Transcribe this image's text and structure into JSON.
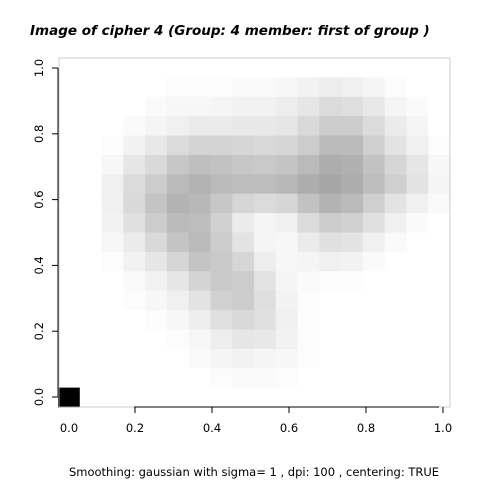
{
  "title": "Image of cipher  4 (Group:  4  member:  first of group )",
  "caption": "Smoothing:  gaussian with sigma= 1 , dpi: 100 , centering: TRUE",
  "chart_data": {
    "type": "heatmap",
    "title": "Image of cipher  4 (Group:  4  member:  first of group )",
    "xlabel": "",
    "ylabel": "",
    "xlim": [
      0,
      1
    ],
    "ylim": [
      0,
      1
    ],
    "x_ticks": [
      "0.0",
      "0.2",
      "0.4",
      "0.6",
      "0.8",
      "1.0"
    ],
    "y_ticks": [
      "0.0",
      "0.2",
      "0.4",
      "0.6",
      "0.8",
      "1.0"
    ],
    "x_tick_values": [
      0,
      0.2,
      0.4,
      0.6,
      0.8,
      1.0
    ],
    "y_tick_values": [
      0,
      0.2,
      0.4,
      0.6,
      0.8,
      1.0
    ],
    "grid": false,
    "colormap": {
      "low": "#ffffff",
      "high": "#000000"
    },
    "cell_count": 18,
    "intensity_rows_top_to_bottom": [
      [
        0,
        0,
        0,
        0,
        0,
        0,
        0,
        0,
        0,
        0,
        0,
        0,
        0,
        0,
        0,
        0,
        0,
        0
      ],
      [
        0,
        0,
        0,
        0,
        0,
        0.01,
        0.01,
        0.01,
        0.02,
        0.02,
        0.03,
        0.05,
        0.07,
        0.06,
        0.04,
        0.01,
        0,
        0
      ],
      [
        0,
        0,
        0,
        0,
        0.02,
        0.03,
        0.03,
        0.04,
        0.05,
        0.05,
        0.07,
        0.1,
        0.14,
        0.13,
        0.09,
        0.04,
        0.02,
        0
      ],
      [
        0,
        0,
        0,
        0.02,
        0.04,
        0.06,
        0.08,
        0.08,
        0.09,
        0.09,
        0.1,
        0.15,
        0.2,
        0.2,
        0.14,
        0.08,
        0.04,
        0
      ],
      [
        0,
        0,
        0.01,
        0.05,
        0.09,
        0.14,
        0.17,
        0.17,
        0.16,
        0.15,
        0.16,
        0.2,
        0.27,
        0.27,
        0.19,
        0.11,
        0.06,
        0.01
      ],
      [
        0,
        0,
        0.03,
        0.1,
        0.15,
        0.22,
        0.25,
        0.24,
        0.22,
        0.21,
        0.23,
        0.27,
        0.32,
        0.31,
        0.24,
        0.16,
        0.1,
        0.03
      ],
      [
        0,
        0,
        0.06,
        0.14,
        0.2,
        0.27,
        0.3,
        0.27,
        0.26,
        0.26,
        0.28,
        0.32,
        0.35,
        0.32,
        0.26,
        0.19,
        0.11,
        0.04
      ],
      [
        0,
        0,
        0.06,
        0.15,
        0.23,
        0.3,
        0.28,
        0.22,
        0.16,
        0.14,
        0.16,
        0.24,
        0.3,
        0.27,
        0.19,
        0.11,
        0.06,
        0.02
      ],
      [
        0,
        0,
        0.05,
        0.12,
        0.2,
        0.27,
        0.26,
        0.18,
        0.08,
        0.04,
        0.06,
        0.14,
        0.2,
        0.18,
        0.12,
        0.06,
        0.02,
        0
      ],
      [
        0,
        0,
        0.03,
        0.08,
        0.15,
        0.23,
        0.27,
        0.2,
        0.11,
        0.04,
        0.03,
        0.08,
        0.12,
        0.11,
        0.06,
        0.02,
        0,
        0
      ],
      [
        0,
        0,
        0.01,
        0.05,
        0.1,
        0.16,
        0.23,
        0.21,
        0.16,
        0.07,
        0.03,
        0.04,
        0.06,
        0.05,
        0.02,
        0,
        0,
        0
      ],
      [
        0,
        0,
        0,
        0.02,
        0.05,
        0.1,
        0.17,
        0.21,
        0.2,
        0.11,
        0.04,
        0.02,
        0.01,
        0.01,
        0,
        0,
        0,
        0
      ],
      [
        0,
        0,
        0,
        0.01,
        0.03,
        0.06,
        0.11,
        0.18,
        0.2,
        0.13,
        0.05,
        0.01,
        0,
        0,
        0,
        0,
        0,
        0
      ],
      [
        0,
        0,
        0,
        0,
        0.01,
        0.03,
        0.07,
        0.12,
        0.15,
        0.12,
        0.06,
        0.01,
        0,
        0,
        0,
        0,
        0,
        0
      ],
      [
        0,
        0,
        0,
        0,
        0,
        0.01,
        0.03,
        0.07,
        0.1,
        0.09,
        0.05,
        0.01,
        0,
        0,
        0,
        0,
        0,
        0
      ],
      [
        0,
        0,
        0,
        0,
        0,
        0,
        0.02,
        0.04,
        0.05,
        0.04,
        0.03,
        0.01,
        0,
        0,
        0,
        0,
        0,
        0
      ],
      [
        0,
        0,
        0,
        0,
        0,
        0,
        0,
        0.01,
        0.02,
        0.02,
        0.01,
        0,
        0,
        0,
        0,
        0,
        0,
        0
      ],
      [
        1,
        0,
        0,
        0,
        0,
        0,
        0,
        0,
        0,
        0,
        0,
        0,
        0,
        0,
        0,
        0,
        0,
        0
      ]
    ]
  }
}
